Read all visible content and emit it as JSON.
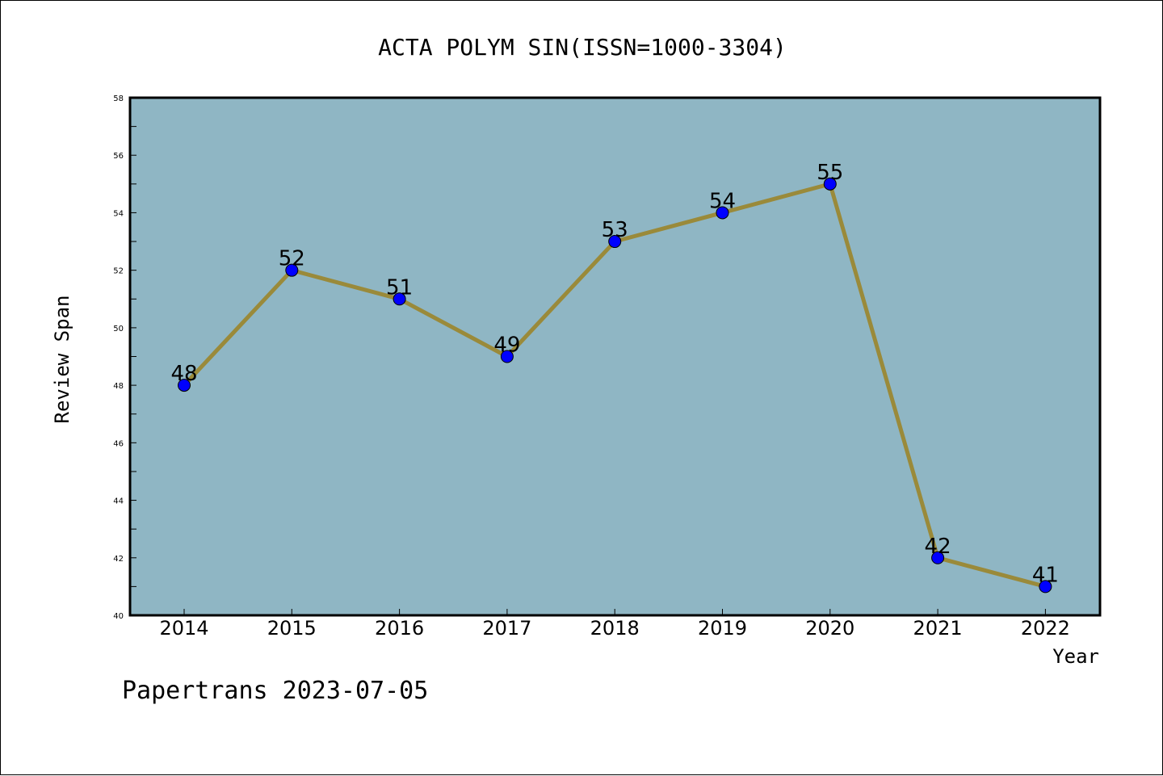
{
  "chart_data": {
    "type": "line",
    "title": "ACTA POLYM SIN(ISSN=1000-3304)",
    "xlabel": "Year",
    "ylabel": "Review Span",
    "x": [
      "2014",
      "2015",
      "2016",
      "2017",
      "2018",
      "2019",
      "2020",
      "2021",
      "2022"
    ],
    "series": [
      {
        "values": [
          48,
          52,
          51,
          49,
          53,
          54,
          55,
          42,
          41
        ]
      }
    ],
    "data_labels": [
      "48",
      "52",
      "51",
      "49",
      "53",
      "54",
      "55",
      "42",
      "41"
    ],
    "ylim": [
      40,
      58
    ],
    "yticks": [
      "40",
      "42",
      "44",
      "46",
      "48",
      "50",
      "52",
      "54",
      "56",
      "58"
    ],
    "grid": false,
    "colors": {
      "plot_background": "#8fb6c4",
      "line": "#9a8a3a",
      "marker": "#0000ff"
    }
  },
  "footer": {
    "credit": "Papertrans 2023-07-05"
  }
}
